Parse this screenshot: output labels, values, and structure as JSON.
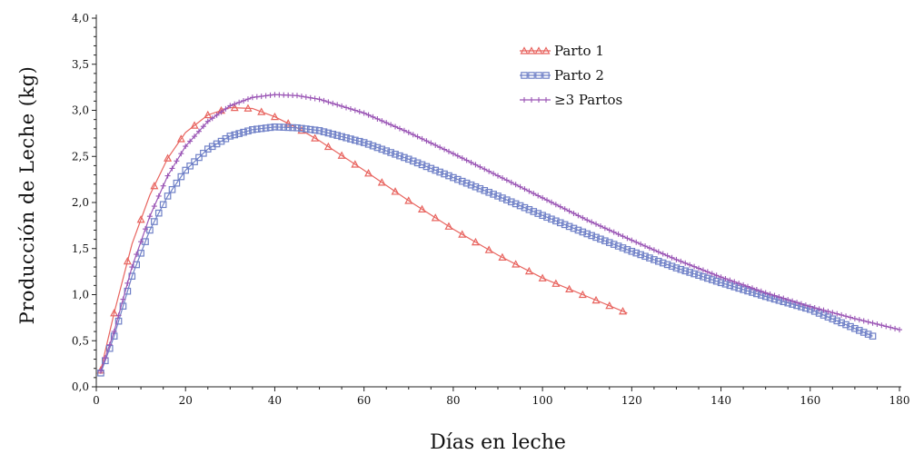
{
  "chart_data": {
    "type": "line",
    "title": "",
    "xlabel": "Días en leche",
    "ylabel": "Producción de Leche (kg)",
    "xlim": [
      0,
      180
    ],
    "ylim": [
      0,
      4
    ],
    "x_ticks": [
      "0",
      "20",
      "40",
      "60",
      "80",
      "100",
      "120",
      "140",
      "160",
      "180"
    ],
    "y_ticks": [
      "0,0",
      "0,5",
      "1,0",
      "1,5",
      "2,0",
      "2,5",
      "3,0",
      "3,5",
      "4,0"
    ],
    "grid": false,
    "legend_position": "top-right",
    "series": [
      {
        "name": "Parto 1",
        "color": "#e8645f",
        "marker": "triangle",
        "x": [
          1,
          4,
          8,
          12,
          16,
          20,
          25,
          30,
          35,
          40,
          45,
          50,
          55,
          60,
          70,
          80,
          90,
          100,
          110,
          119
        ],
        "y": [
          0.18,
          0.8,
          1.55,
          2.08,
          2.48,
          2.76,
          2.95,
          3.03,
          3.02,
          2.93,
          2.81,
          2.67,
          2.51,
          2.35,
          2.02,
          1.71,
          1.43,
          1.18,
          0.98,
          0.8
        ]
      },
      {
        "name": "Parto 2",
        "color": "#6f80c7",
        "marker": "square",
        "x": [
          1,
          4,
          8,
          12,
          16,
          20,
          25,
          30,
          35,
          40,
          45,
          50,
          60,
          70,
          80,
          90,
          100,
          110,
          120,
          130,
          140,
          150,
          160,
          174
        ],
        "y": [
          0.15,
          0.55,
          1.2,
          1.7,
          2.07,
          2.35,
          2.58,
          2.72,
          2.79,
          2.82,
          2.81,
          2.78,
          2.65,
          2.47,
          2.27,
          2.07,
          1.86,
          1.66,
          1.47,
          1.29,
          1.13,
          0.98,
          0.84,
          0.55
        ]
      },
      {
        "name": "≥3 Partos",
        "color": "#9a55b5",
        "marker": "plus",
        "x": [
          1,
          4,
          8,
          12,
          16,
          20,
          25,
          30,
          35,
          40,
          45,
          50,
          60,
          70,
          80,
          90,
          100,
          110,
          120,
          130,
          140,
          150,
          160,
          170,
          180
        ],
        "y": [
          0.17,
          0.6,
          1.3,
          1.85,
          2.29,
          2.61,
          2.88,
          3.05,
          3.14,
          3.17,
          3.16,
          3.12,
          2.97,
          2.76,
          2.53,
          2.29,
          2.05,
          1.81,
          1.59,
          1.38,
          1.19,
          1.02,
          0.87,
          0.74,
          0.62
        ]
      }
    ]
  }
}
